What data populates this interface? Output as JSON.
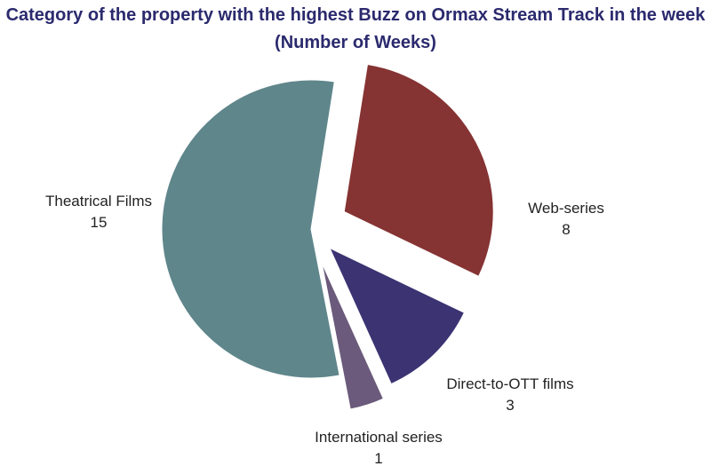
{
  "chart_data": {
    "type": "pie",
    "title_line1": "Category of the property with the highest Buzz on Ormax Stream Track in the week",
    "title_line2": "(Number of Weeks)",
    "slices": [
      {
        "label": "Web-series",
        "value": 8,
        "color": "#863333"
      },
      {
        "label": "Direct-to-OTT films",
        "value": 3,
        "color": "#3b3372"
      },
      {
        "label": "International series",
        "value": 1,
        "color": "#6b5a7b"
      },
      {
        "label": "Theatrical Films",
        "value": 15,
        "color": "#5f868b"
      }
    ]
  }
}
